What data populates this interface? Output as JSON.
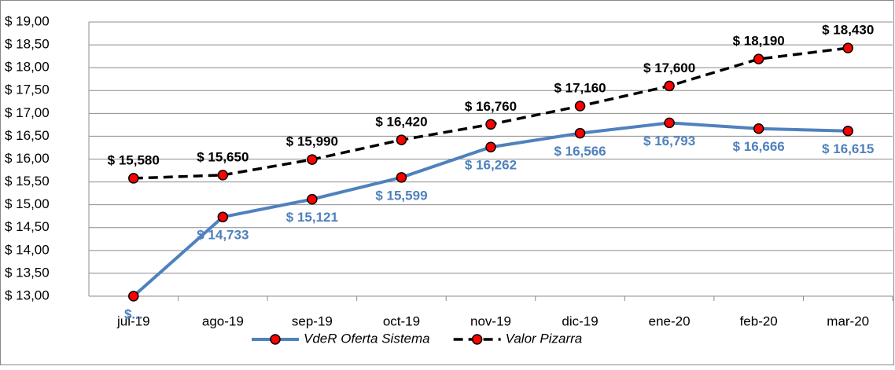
{
  "chart_data": {
    "type": "line",
    "categories": [
      "jul-19",
      "ago-19",
      "sep-19",
      "oct-19",
      "nov-19",
      "dic-19",
      "ene-20",
      "feb-20",
      "mar-20"
    ],
    "series": [
      {
        "name": "VdeR Oferta Sistema",
        "color": "#4f81bd",
        "dashed": false,
        "label_position": "below",
        "values": [
          13.0,
          14.733,
          15.121,
          15.599,
          16.262,
          16.566,
          16.793,
          16.666,
          16.615
        ],
        "value_labels": [
          "$...",
          "$ 14,733",
          "$ 15,121",
          "$ 15,599",
          "$ 16,262",
          "$ 16,566",
          "$ 16,793",
          "$ 16,666",
          "$ 16,615"
        ]
      },
      {
        "name": "Valor Pizarra",
        "color": "#000000",
        "dashed": true,
        "label_position": "above",
        "values": [
          15.58,
          15.65,
          15.99,
          16.42,
          16.76,
          17.16,
          17.6,
          18.19,
          18.43
        ],
        "value_labels": [
          "$ 15,580",
          "$ 15,650",
          "$ 15,990",
          "$ 16,420",
          "$ 16,760",
          "$ 17,160",
          "$ 17,600",
          "$ 18,190",
          "$ 18,430"
        ]
      }
    ],
    "marker_color": "#ff0000",
    "ylim": [
      13,
      19
    ],
    "yticks": [
      {
        "value": 13,
        "label": "$ 13,00"
      },
      {
        "value": 13.5,
        "label": "$ 13,50"
      },
      {
        "value": 14,
        "label": "$ 14,00"
      },
      {
        "value": 14.5,
        "label": "$ 14,50"
      },
      {
        "value": 15,
        "label": "$ 15,00"
      },
      {
        "value": 15.5,
        "label": "$ 15,50"
      },
      {
        "value": 16,
        "label": "$ 16,00"
      },
      {
        "value": 16.5,
        "label": "$ 16,50"
      },
      {
        "value": 17,
        "label": "$ 17,00"
      },
      {
        "value": 17.5,
        "label": "$ 17,50"
      },
      {
        "value": 18,
        "label": "$ 18,00"
      },
      {
        "value": 18.5,
        "label": "$ 18,50"
      },
      {
        "value": 19,
        "label": "$ 19,00"
      }
    ],
    "grid": true,
    "legend": "bottom"
  }
}
